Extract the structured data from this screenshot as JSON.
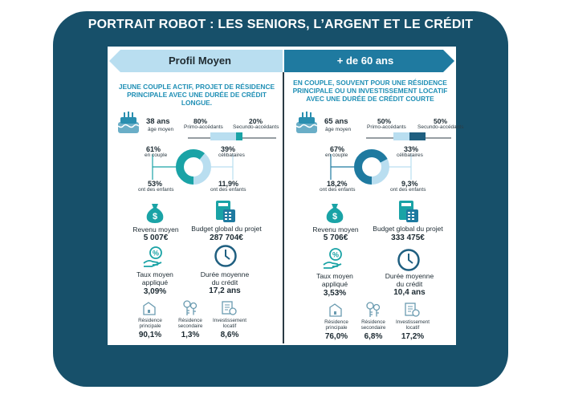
{
  "title": "PORTRAIT ROBOT : LES SENIORS, L’ARGENT ET LE CRÉDIT",
  "left": {
    "header": "Profil Moyen",
    "subtitle_l1": "JEUNE COUPLE ACTIF, PROJET DE RÉSIDENCE",
    "subtitle_l2": "PRINCIPALE AVEC UNE DURÉE DE CRÉDIT LONGUE.",
    "age": "38 ans",
    "age_label": "âge moyen",
    "primo_pct": "80%",
    "primo_label": "Primo-accédants",
    "secundo_pct": "20%",
    "secundo_label": "Secundo-accédants",
    "couple_pct": "61%",
    "couple_label": "en couple",
    "celib_pct": "39%",
    "celib_label": "célibataires",
    "children_pct": "53%",
    "children_label": "ont des enfants",
    "children2_pct": "11,9%",
    "children2_label": "ont des enfants",
    "income_label": "Revenu moyen",
    "income_value": "5 007€",
    "budget_label": "Budget global du projet",
    "budget_value": "287 704€",
    "rate_label_l1": "Taux moyen",
    "rate_label_l2": "appliqué",
    "rate_value": "3,09%",
    "duration_label_l1": "Durée moyenne",
    "duration_label_l2": "du crédit",
    "duration_value": "17,2 ans",
    "res_main_l1": "Résidence",
    "res_main_l2": "principale",
    "res_main_value": "90,1%",
    "res_second_l1": "Résidence",
    "res_second_l2": "secondaire",
    "res_second_value": "1,3%",
    "invest_l1": "Investissement",
    "invest_l2": "locatif",
    "invest_value": "8,6%"
  },
  "right": {
    "header": "+ de 60 ans",
    "subtitle_l1": "EN COUPLE, SOUVENT POUR UNE RÉSIDENCE",
    "subtitle_l2": "PRINCIPALE OU UN INVESTISSEMENT LOCATIF",
    "subtitle_l3": "AVEC UNE DURÉE DE CRÉDIT COURTE",
    "age": "65 ans",
    "age_label": "âge moyen",
    "primo_pct": "50%",
    "primo_label": "Primo-accédants",
    "secundo_pct": "50%",
    "secundo_label": "Secundo-accédants",
    "couple_pct": "67%",
    "couple_label": "en couple",
    "celib_pct": "33%",
    "celib_label": "célibataires",
    "children_pct": "18,2%",
    "children_label": "ont des enfants",
    "children2_pct": "9,3%",
    "children2_label": "ont des enfants",
    "income_label": "Revenu moyen",
    "income_value": "5 706€",
    "budget_label": "Budget global du projet",
    "budget_value": "333 475€",
    "rate_label_l1": "Taux moyen",
    "rate_label_l2": "appliqué",
    "rate_value": "3,53%",
    "duration_label_l1": "Durée moyenne",
    "duration_label_l2": "du crédit",
    "duration_value": "10,4 ans",
    "res_main_l1": "Résidence",
    "res_main_l2": "principale",
    "res_main_value": "76,0%",
    "res_second_l1": "Résidence",
    "res_second_l2": "secondaire",
    "res_second_value": "6,8%",
    "invest_l1": "Investissement",
    "invest_l2": "locatif",
    "invest_value": "17,2%"
  },
  "colors": {
    "frame": "#17506a",
    "light_blue": "#b9def0",
    "teal": "#1aa3a6",
    "dark_blue": "#1f7aa0",
    "heading_blue": "#1f8fb5"
  }
}
